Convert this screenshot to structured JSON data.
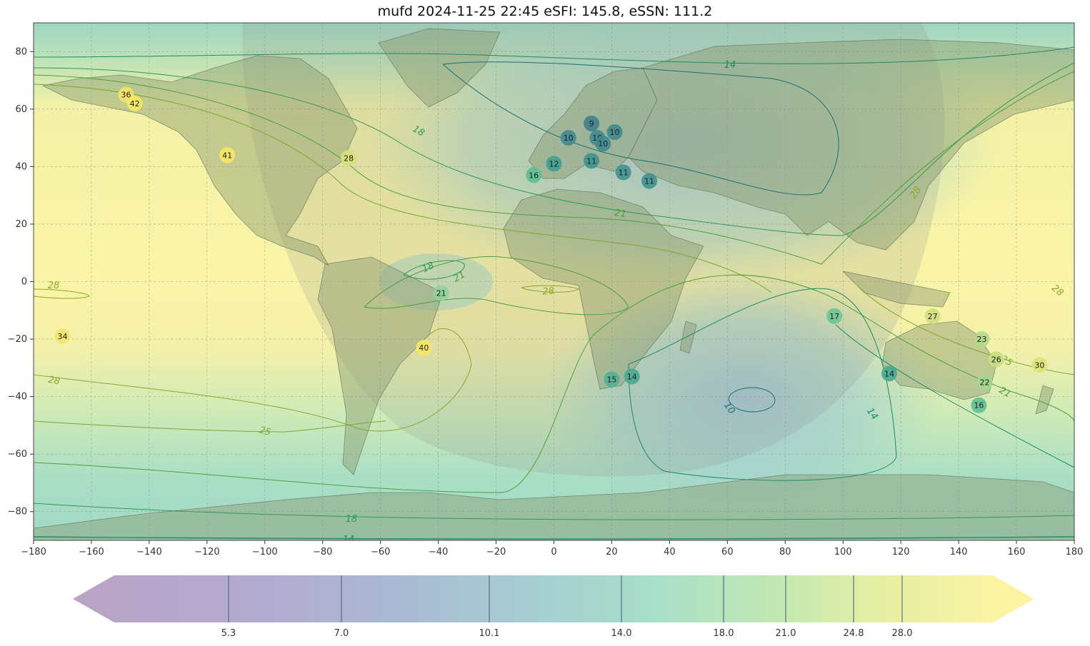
{
  "title": "mufd 2024-11-25 22:45 eSFI: 145.8, eSSN: 111.2",
  "x_ticks": [
    "−180",
    "−160",
    "−140",
    "−120",
    "−100",
    "−80",
    "−60",
    "−40",
    "−20",
    "0",
    "20",
    "40",
    "60",
    "80",
    "100",
    "120",
    "140",
    "160",
    "180"
  ],
  "y_ticks": [
    "80",
    "60",
    "40",
    "20",
    "0",
    "−20",
    "−40",
    "−60",
    "−80"
  ],
  "colorbar_ticks": [
    "5.3",
    "7.0",
    "10.1",
    "14.0",
    "18.0",
    "21.0",
    "24.8",
    "28.0"
  ],
  "contour_labels": {
    "c14_top": "14",
    "c18_a": "18",
    "c21_a": "21",
    "c18_b": "18",
    "c21_b": "21",
    "c28_a": "28",
    "c28_b": "28",
    "c28_c": "28",
    "c28_d": "28",
    "c28_e": "28",
    "c25_a": "25",
    "c25_b": "25",
    "c21_c": "21",
    "c10": "10",
    "c14_b": "14",
    "c18_bottom": "18",
    "c14_bottom": "14"
  },
  "stations": [
    {
      "lon": -148,
      "lat": 65,
      "value": "36",
      "color": "#f4e36a"
    },
    {
      "lon": -145,
      "lat": 62,
      "value": "42",
      "color": "#f7ea5e"
    },
    {
      "lon": -113,
      "lat": 44,
      "value": "41",
      "color": "#f7e962"
    },
    {
      "lon": -71,
      "lat": 43,
      "value": "28",
      "color": "#d6e27a"
    },
    {
      "lon": -170,
      "lat": -19,
      "value": "34",
      "color": "#f1e56b"
    },
    {
      "lon": -39,
      "lat": -4,
      "value": "21",
      "color": "#8fd39b"
    },
    {
      "lon": -45,
      "lat": -23,
      "value": "40",
      "color": "#f6e861"
    },
    {
      "lon": -7,
      "lat": 37,
      "value": "16",
      "color": "#5cbf94"
    },
    {
      "lon": 0,
      "lat": 41,
      "value": "12",
      "color": "#3f9e93"
    },
    {
      "lon": 5,
      "lat": 50,
      "value": "10",
      "color": "#3f8990"
    },
    {
      "lon": 13,
      "lat": 55,
      "value": "9",
      "color": "#3f7f8e"
    },
    {
      "lon": 15,
      "lat": 50,
      "value": "10",
      "color": "#3f8990"
    },
    {
      "lon": 17,
      "lat": 48,
      "value": "10",
      "color": "#3f8990"
    },
    {
      "lon": 21,
      "lat": 52,
      "value": "10",
      "color": "#3f8990"
    },
    {
      "lon": 13,
      "lat": 42,
      "value": "11",
      "color": "#3f9192"
    },
    {
      "lon": 24,
      "lat": 38,
      "value": "11",
      "color": "#3f9192"
    },
    {
      "lon": 33,
      "lat": 35,
      "value": "11",
      "color": "#3f9192"
    },
    {
      "lon": 20,
      "lat": -34,
      "value": "15",
      "color": "#4fb292"
    },
    {
      "lon": 27,
      "lat": -33,
      "value": "14",
      "color": "#47aa91"
    },
    {
      "lon": 97,
      "lat": -12,
      "value": "17",
      "color": "#6cc596"
    },
    {
      "lon": 116,
      "lat": -32,
      "value": "14",
      "color": "#47aa91"
    },
    {
      "lon": 131,
      "lat": -12,
      "value": "27",
      "color": "#d2e07c"
    },
    {
      "lon": 148,
      "lat": -20,
      "value": "23",
      "color": "#b1d98a"
    },
    {
      "lon": 153,
      "lat": -27,
      "value": "26",
      "color": "#c8de80"
    },
    {
      "lon": 149,
      "lat": -35,
      "value": "22",
      "color": "#a3d68f"
    },
    {
      "lon": 147,
      "lat": -43,
      "value": "16",
      "color": "#5cbf94"
    },
    {
      "lon": 168,
      "lat": -29,
      "value": "30",
      "color": "#e0e274"
    }
  ]
}
